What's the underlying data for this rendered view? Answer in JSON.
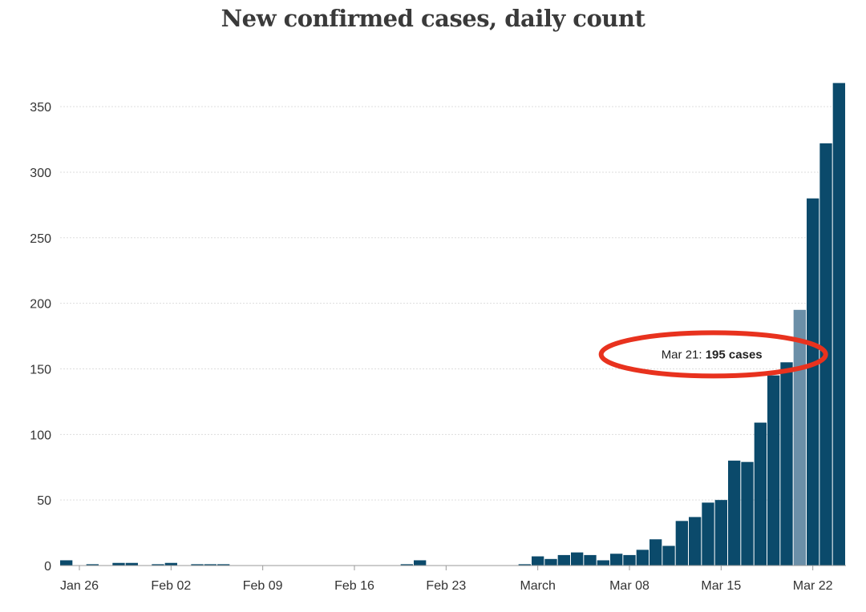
{
  "chart_data": {
    "type": "bar",
    "title": "New confirmed cases, daily count",
    "ylim": [
      0,
      369
    ],
    "yticks": [
      0,
      50,
      100,
      150,
      200,
      250,
      300,
      350
    ],
    "x_tick_labels": [
      "Jan 26",
      "Feb 02",
      "Feb 09",
      "Feb 16",
      "Feb 23",
      "March",
      "Mar 08",
      "Mar 15",
      "Mar 22"
    ],
    "x_tick_dates": [
      "2020-01-26",
      "2020-02-02",
      "2020-02-09",
      "2020-02-16",
      "2020-02-23",
      "2020-03-01",
      "2020-03-08",
      "2020-03-15",
      "2020-03-22"
    ],
    "grid": true,
    "legend": "none",
    "bar_color": "#0b4a6b",
    "highlight_color": "#6b8fa8",
    "x": [
      "2020-01-25",
      "2020-01-26",
      "2020-01-27",
      "2020-01-28",
      "2020-01-29",
      "2020-01-30",
      "2020-01-31",
      "2020-02-01",
      "2020-02-02",
      "2020-02-03",
      "2020-02-04",
      "2020-02-05",
      "2020-02-06",
      "2020-02-07",
      "2020-02-08",
      "2020-02-09",
      "2020-02-10",
      "2020-02-11",
      "2020-02-12",
      "2020-02-13",
      "2020-02-14",
      "2020-02-15",
      "2020-02-16",
      "2020-02-17",
      "2020-02-18",
      "2020-02-19",
      "2020-02-20",
      "2020-02-21",
      "2020-02-22",
      "2020-02-23",
      "2020-02-24",
      "2020-02-25",
      "2020-02-26",
      "2020-02-27",
      "2020-02-28",
      "2020-02-29",
      "2020-03-01",
      "2020-03-02",
      "2020-03-03",
      "2020-03-04",
      "2020-03-05",
      "2020-03-06",
      "2020-03-07",
      "2020-03-08",
      "2020-03-09",
      "2020-03-10",
      "2020-03-11",
      "2020-03-12",
      "2020-03-13",
      "2020-03-14",
      "2020-03-15",
      "2020-03-16",
      "2020-03-17",
      "2020-03-18",
      "2020-03-19",
      "2020-03-20",
      "2020-03-21",
      "2020-03-22",
      "2020-03-23",
      "2020-03-24"
    ],
    "values": [
      4,
      0,
      1,
      0,
      2,
      2,
      0,
      1,
      2,
      0,
      1,
      1,
      1,
      0,
      0,
      0,
      0,
      0,
      0,
      0,
      0,
      0,
      0,
      0,
      0,
      0,
      1,
      4,
      0,
      0,
      0,
      0,
      0,
      0,
      0,
      1,
      7,
      5,
      8,
      10,
      8,
      4,
      9,
      8,
      12,
      20,
      15,
      34,
      37,
      48,
      50,
      80,
      79,
      109,
      145,
      155,
      195,
      280,
      322,
      368
    ],
    "highlight_index": 56
  },
  "tooltip": {
    "date": "Mar 21:",
    "value": "195 cases"
  },
  "annotation_color": "#e8321e"
}
